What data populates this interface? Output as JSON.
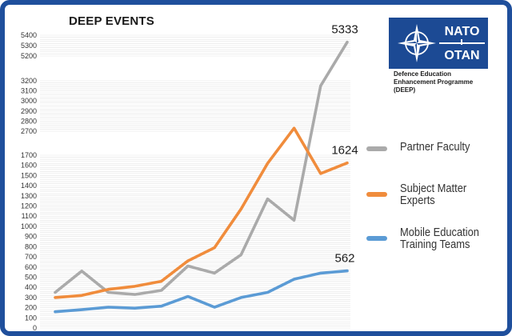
{
  "chart_data": {
    "type": "line",
    "title": "DEEP EVENTS",
    "y_ticks": [
      0,
      100,
      200,
      300,
      400,
      500,
      600,
      700,
      800,
      900,
      1000,
      1100,
      1200,
      1300,
      1400,
      1500,
      1600,
      1700,
      2700,
      2800,
      2900,
      3000,
      3100,
      3200,
      5200,
      5300,
      5400
    ],
    "y_axis_breaks": [
      [
        1700,
        2700
      ],
      [
        3200,
        5200
      ]
    ],
    "x_points": 12,
    "grid": true,
    "legend_position": "right",
    "series": [
      {
        "name": "Partner Faculty",
        "color": "#aaaaaa",
        "values": [
          350,
          560,
          350,
          330,
          370,
          610,
          540,
          720,
          1270,
          1060,
          3150,
          5333
        ],
        "end_label": "5333"
      },
      {
        "name": "Subject Matter Experts",
        "color": "#f08c3c",
        "values": [
          300,
          320,
          380,
          410,
          460,
          660,
          790,
          1170,
          1620,
          2730,
          1520,
          1624
        ],
        "end_label": "1624"
      },
      {
        "name": "Mobile Education Training Teams",
        "color": "#5b9bd5",
        "values": [
          160,
          180,
          205,
          195,
          215,
          310,
          205,
          300,
          350,
          480,
          540,
          562
        ],
        "end_label": "562"
      }
    ]
  },
  "logo": {
    "top_word": "NATO",
    "bottom_word": "OTAN",
    "caption_line1": "Defence Education",
    "caption_line2": "Enhancement Programme",
    "caption_line3": "(DEEP)"
  },
  "legend": {
    "items": [
      {
        "line1": "Partner Faculty",
        "line2": ""
      },
      {
        "line1": "Subject Matter",
        "line2": "Experts"
      },
      {
        "line1": "Mobile Education",
        "line2": "Training Teams"
      }
    ]
  }
}
